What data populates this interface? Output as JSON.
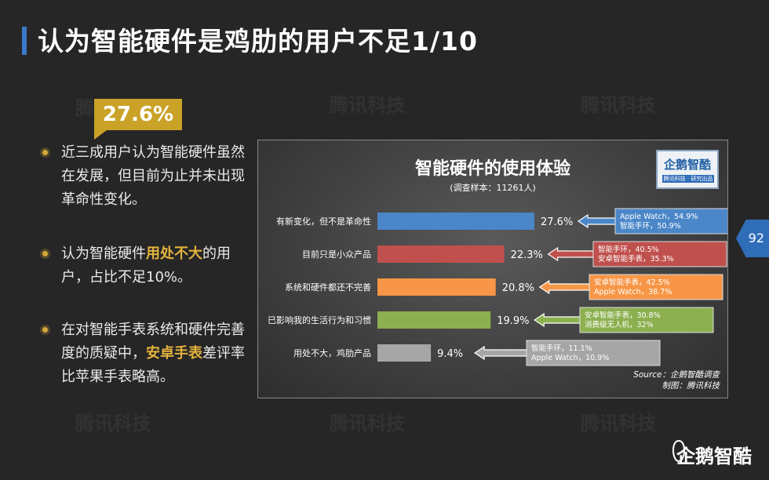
{
  "header": {
    "title": "认为智能硬件是鸡肋的用户不足1/10"
  },
  "stat_badge": "27.6%",
  "bullets": [
    {
      "parts": [
        {
          "text": "近三成用户认为智能硬件虽然在发展，但目前为止并未出现革命性变化。",
          "hl": false
        }
      ]
    },
    {
      "parts": [
        {
          "text": "认为智能硬件",
          "hl": false
        },
        {
          "text": "用处不大",
          "hl": true
        },
        {
          "text": "的用户，占比不足10%。",
          "hl": false
        }
      ]
    },
    {
      "parts": [
        {
          "text": "在对智能手表系统和硬件完善度的质疑中，",
          "hl": false
        },
        {
          "text": "安卓手表",
          "hl": true
        },
        {
          "text": "差评率比苹果手表略高。",
          "hl": false
        }
      ]
    }
  ],
  "watermark": "腾讯科技",
  "page_number": "92",
  "brand": "企鹅智酷",
  "chart_logo": {
    "name": "企鹅智酷",
    "tagline": "腾讯科技 · 研究出品"
  },
  "source": {
    "line1": "Source：企鹅智酷调查",
    "line2": "制图：腾讯科技"
  },
  "chart_data": {
    "type": "bar",
    "orientation": "horizontal",
    "title": "智能硬件的使用体验",
    "subtitle": "(调查样本：11261人)",
    "categories": [
      "有新变化，但不是革命性",
      "目前只是小众产品",
      "系统和硬件都还不完善",
      "已影响我的生活行为和习惯",
      "用处不大，鸡肋产品"
    ],
    "values": [
      27.6,
      22.3,
      20.8,
      19.9,
      9.4
    ],
    "value_labels": [
      "27.6%",
      "22.3%",
      "20.8%",
      "19.9%",
      "9.4%"
    ],
    "unit": "%",
    "colors": [
      "#4a86c8",
      "#c0504d",
      "#f79646",
      "#8cb04f",
      "#a6a6a6"
    ],
    "callouts": [
      [
        "Apple Watch，54.9%",
        "智能手环，50.9%"
      ],
      [
        "智能手环，40.5%",
        "安卓智能手表，35.3%"
      ],
      [
        "安卓智能手表，42.5%",
        "Apple Watch，38.7%"
      ],
      [
        "安卓智能手表，30.8%",
        "消费级无人机，32%"
      ],
      [
        "智能手环，11.1%",
        "Apple Watch，10.9%"
      ]
    ],
    "xlim": [
      0,
      40
    ],
    "grid": false,
    "legend": "none"
  }
}
